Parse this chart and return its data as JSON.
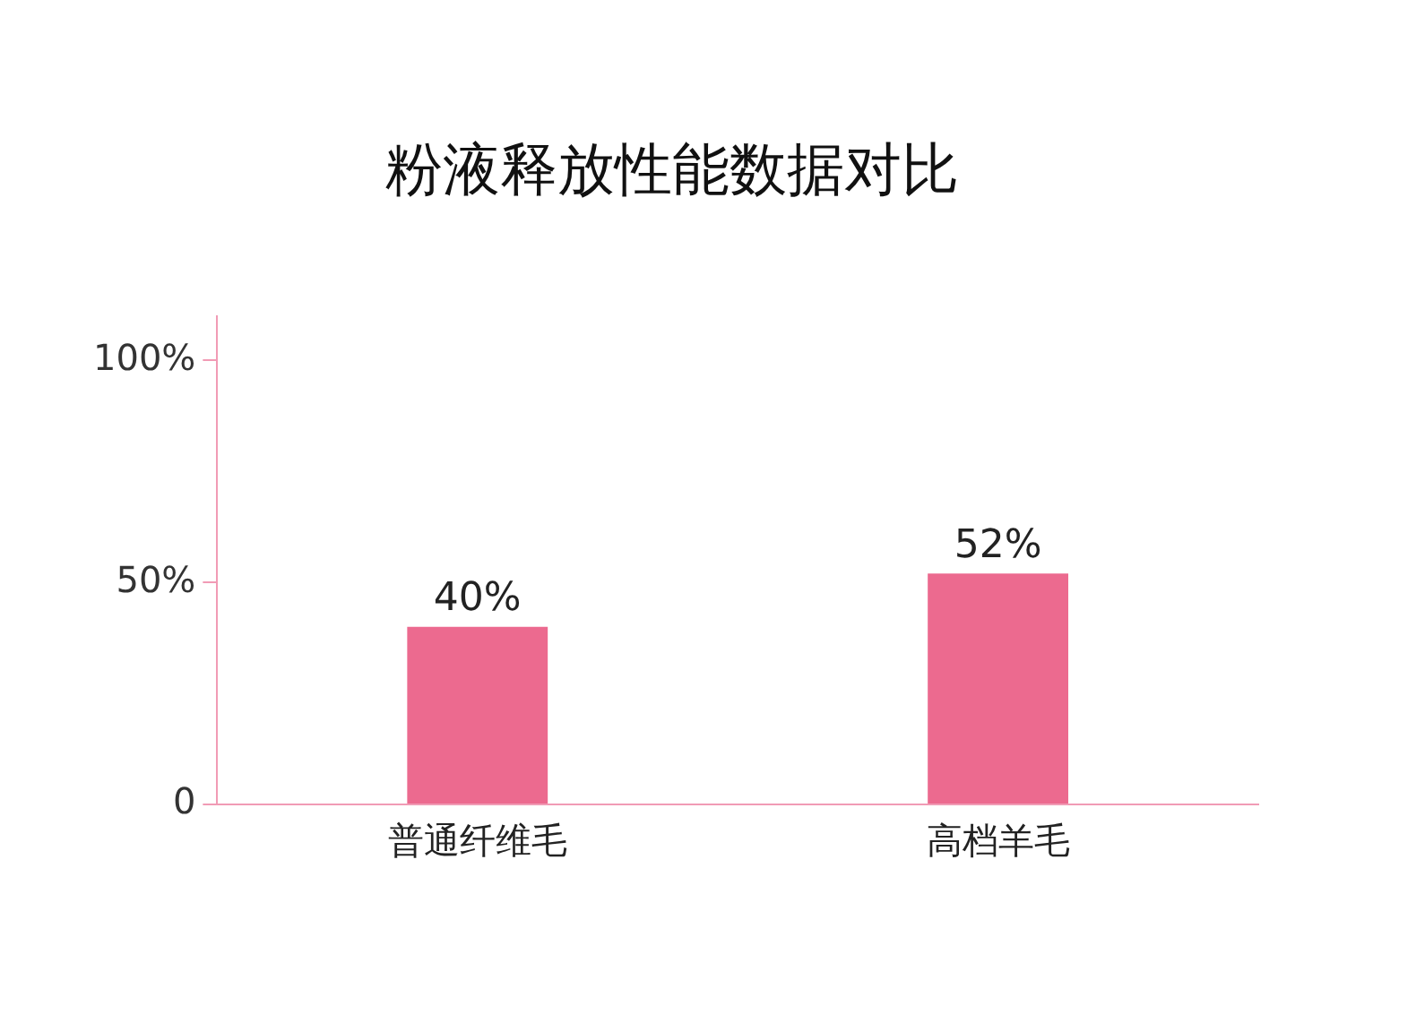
{
  "chart_data": {
    "type": "bar",
    "title": "粉液释放性能数据对比",
    "categories": [
      "普通纤维毛",
      "高档羊毛"
    ],
    "values": [
      40,
      52
    ],
    "color": "#ec6a8f",
    "value_labels": [
      "40%",
      "52%"
    ],
    "ylim": [
      0,
      110
    ],
    "yticks": [
      {
        "value": 0,
        "label": "0"
      },
      {
        "value": 50,
        "label": "50%"
      },
      {
        "value": 100,
        "label": "100%"
      }
    ],
    "grid": false,
    "legend": false
  }
}
